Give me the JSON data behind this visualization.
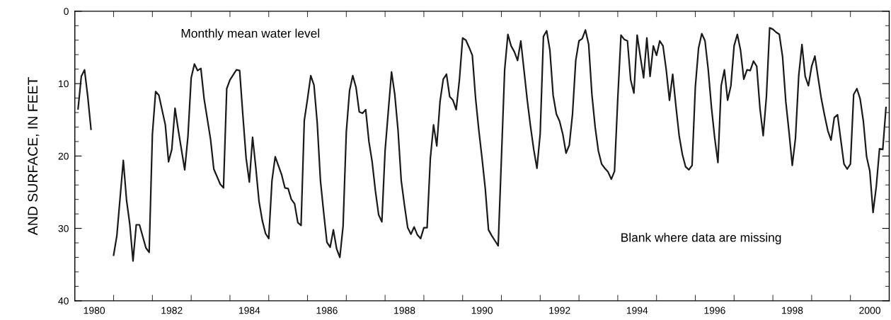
{
  "chart_data": {
    "type": "line",
    "ylabel": "AND SURFACE, IN FEET",
    "annotations": [
      "Monthly mean water level",
      "Blank where data are missing"
    ],
    "xlim": [
      "1980",
      "2001"
    ],
    "ylim": [
      40,
      0
    ],
    "xticks": [
      {
        "value": "1980-07",
        "label": "1980"
      },
      {
        "value": "1982-07",
        "label": "1982"
      },
      {
        "value": "1984-07",
        "label": "1984"
      },
      {
        "value": "1986-07",
        "label": "1986"
      },
      {
        "value": "1988-07",
        "label": "1988"
      },
      {
        "value": "1990-07",
        "label": "1990"
      },
      {
        "value": "1992-07",
        "label": "1992"
      },
      {
        "value": "1994-07",
        "label": "1994"
      },
      {
        "value": "1996-07",
        "label": "1996"
      },
      {
        "value": "1998-07",
        "label": "1998"
      },
      {
        "value": "2000-07",
        "label": "2000"
      },
      {
        "value": "1981",
        "label": null
      },
      {
        "value": "1982",
        "label": null
      },
      {
        "value": "1983",
        "label": null
      },
      {
        "value": "1984",
        "label": null
      },
      {
        "value": "1985",
        "label": null
      },
      {
        "value": "1986",
        "label": null
      },
      {
        "value": "1987",
        "label": null
      },
      {
        "value": "1988",
        "label": null
      },
      {
        "value": "1989",
        "label": null
      },
      {
        "value": "1990",
        "label": null
      },
      {
        "value": "1991",
        "label": null
      },
      {
        "value": "1992",
        "label": null
      },
      {
        "value": "1993",
        "label": null
      },
      {
        "value": "1994",
        "label": null
      },
      {
        "value": "1995",
        "label": null
      },
      {
        "value": "1996",
        "label": null
      },
      {
        "value": "1997",
        "label": null
      },
      {
        "value": "1998",
        "label": null
      },
      {
        "value": "1999",
        "label": null
      },
      {
        "value": "2000",
        "label": null
      }
    ],
    "yticks": [
      0,
      10,
      20,
      30,
      40,
      {
        "value": 2,
        "label": null
      },
      {
        "value": 4,
        "label": null
      },
      {
        "value": 6,
        "label": null
      },
      {
        "value": 8,
        "label": null
      },
      {
        "value": 12,
        "label": null
      },
      {
        "value": 14,
        "label": null
      },
      {
        "value": 16,
        "label": null
      },
      {
        "value": 18,
        "label": null
      },
      {
        "value": 22,
        "label": null
      },
      {
        "value": 24,
        "label": null
      },
      {
        "value": 26,
        "label": null
      },
      {
        "value": 28,
        "label": null
      },
      {
        "value": 32,
        "label": null
      },
      {
        "value": 34,
        "label": null
      },
      {
        "value": 36,
        "label": null
      },
      {
        "value": 38,
        "label": null
      }
    ],
    "marker": "none",
    "line_style": "solid",
    "series": [
      {
        "color": "#1a1a1a",
        "x": [
          "1980-02",
          "1980-03",
          "1980-04",
          "1980-05",
          "1980-06",
          "1980-07",
          "1981-01",
          "1981-02",
          "1981-04",
          "1981-05",
          "1981-06",
          "1981-07",
          "1981-08",
          "1981-09",
          "1981-11",
          "1981-12",
          "1982-01",
          "1982-02",
          "1982-03",
          "1982-05",
          "1982-06",
          "1982-07",
          "1982-08",
          "1982-09",
          "1982-11",
          "1982-12",
          "1983-01",
          "1983-02",
          "1983-03",
          "1983-04",
          "1983-05",
          "1983-07",
          "1983-08",
          "1983-10",
          "1983-11",
          "1983-12",
          "1984-01",
          "1984-03",
          "1984-04",
          "1984-05",
          "1984-06",
          "1984-07",
          "1984-08",
          "1984-09",
          "1984-10",
          "1984-11",
          "1984-12",
          "1985-01",
          "1985-02",
          "1985-03",
          "1985-05",
          "1985-06",
          "1985-07",
          "1985-08",
          "1985-09",
          "1985-10",
          "1985-11",
          "1985-12",
          "1986-01",
          "1986-02",
          "1986-03",
          "1986-04",
          "1986-05",
          "1986-06",
          "1986-07",
          "1986-08",
          "1986-09",
          "1986-10",
          "1986-11",
          "1986-12",
          "1987-01",
          "1987-02",
          "1987-03",
          "1987-04",
          "1987-05",
          "1987-06",
          "1987-07",
          "1987-08",
          "1987-09",
          "1987-10",
          "1987-11",
          "1987-12",
          "1988-01",
          "1988-02",
          "1988-03",
          "1988-04",
          "1988-05",
          "1988-06",
          "1988-07",
          "1988-08",
          "1988-09",
          "1988-10",
          "1988-11",
          "1988-12",
          "1989-01",
          "1989-02",
          "1989-03",
          "1989-04",
          "1989-05",
          "1989-06",
          "1989-07",
          "1989-08",
          "1989-09",
          "1989-10",
          "1989-11",
          "1989-12",
          "1990-01",
          "1990-02",
          "1990-03",
          "1990-04",
          "1990-05",
          "1990-06",
          "1990-07",
          "1990-08",
          "1990-09",
          "1990-10",
          "1990-11",
          "1990-12",
          "1991-01",
          "1991-02",
          "1991-03",
          "1991-04",
          "1991-05",
          "1991-06",
          "1991-07",
          "1991-08",
          "1991-09",
          "1991-10",
          "1991-11",
          "1991-12",
          "1992-01",
          "1992-02",
          "1992-03",
          "1992-04",
          "1992-05",
          "1992-06",
          "1992-07",
          "1992-08",
          "1992-09",
          "1992-10",
          "1992-11",
          "1992-12",
          "1993-01",
          "1993-02",
          "1993-03",
          "1993-04",
          "1993-05",
          "1993-06",
          "1993-07",
          "1993-08",
          "1993-09",
          "1993-10",
          "1993-11",
          "1993-12",
          "1994-01",
          "1994-02",
          "1994-03",
          "1994-04",
          "1994-05",
          "1994-06",
          "1994-07",
          "1994-08",
          "1994-09",
          "1994-10",
          "1994-11",
          "1994-12",
          "1995-01",
          "1995-02",
          "1995-03",
          "1995-04",
          "1995-05",
          "1995-06",
          "1995-07",
          "1995-08",
          "1995-09",
          "1995-10",
          "1995-11",
          "1995-12",
          "1996-01",
          "1996-02",
          "1996-03",
          "1996-04",
          "1996-05",
          "1996-06",
          "1996-07",
          "1996-08",
          "1996-09",
          "1996-10",
          "1996-11",
          "1996-12",
          "1997-01",
          "1997-02",
          "1997-03",
          "1997-04",
          "1997-05",
          "1997-06",
          "1997-07",
          "1997-08",
          "1997-09",
          "1997-10",
          "1997-11",
          "1997-12",
          "1998-01",
          "1998-02",
          "1998-03",
          "1998-04",
          "1998-05",
          "1998-06",
          "1998-07",
          "1998-08",
          "1998-09",
          "1998-10",
          "1998-11",
          "1998-12",
          "1999-01",
          "1999-02",
          "1999-03",
          "1999-04",
          "1999-05",
          "1999-06",
          "1999-07",
          "1999-08",
          "1999-09",
          "1999-10",
          "1999-11",
          "1999-12",
          "2000-01",
          "2000-02",
          "2000-03",
          "2000-04",
          "2000-05",
          "2000-06",
          "2000-07",
          "2000-08",
          "2000-09",
          "2000-10",
          "2000-11",
          "2000-12"
        ],
        "values": [
          13.5,
          9.0,
          8.1,
          11.8,
          16.3,
          null,
          33.7,
          31.0,
          20.6,
          26.1,
          29.4,
          34.5,
          29.5,
          29.5,
          32.7,
          33.3,
          17.0,
          11.1,
          11.6,
          15.7,
          20.8,
          19.1,
          13.4,
          16.4,
          21.9,
          17.3,
          9.2,
          7.3,
          8.2,
          7.9,
          12.1,
          17.7,
          21.8,
          23.9,
          24.4,
          10.7,
          9.5,
          8.1,
          8.2,
          14.4,
          20.3,
          23.6,
          17.4,
          21.6,
          26.3,
          28.9,
          30.7,
          31.4,
          23.4,
          20.1,
          22.6,
          24.4,
          24.5,
          26.0,
          26.6,
          29.2,
          29.6,
          15.1,
          12.1,
          8.9,
          10.2,
          15.4,
          23.4,
          27.8,
          31.9,
          32.6,
          30.2,
          32.8,
          34.0,
          29.7,
          16.7,
          11.0,
          8.9,
          10.5,
          13.9,
          14.1,
          13.6,
          18.0,
          20.8,
          24.8,
          28.1,
          29.1,
          19.3,
          13.8,
          8.4,
          11.5,
          16.4,
          23.4,
          26.8,
          29.9,
          30.8,
          29.8,
          30.9,
          31.4,
          29.9,
          29.9,
          20.4,
          15.7,
          18.6,
          12.5,
          9.4,
          8.7,
          11.8,
          12.3,
          13.6,
          9.5,
          3.7,
          4.0,
          5.0,
          6.1,
          12.0,
          16.4,
          20.3,
          24.5,
          30.2,
          31.0,
          31.7,
          32.4,
          20.3,
          8.1,
          3.2,
          4.8,
          5.6,
          6.8,
          4.1,
          8.2,
          12.3,
          15.9,
          19.1,
          21.7,
          16.9,
          3.5,
          2.7,
          5.4,
          11.6,
          14.2,
          15.2,
          17.0,
          19.6,
          18.5,
          14.2,
          6.8,
          4.1,
          3.8,
          2.6,
          4.6,
          11.5,
          16.0,
          19.3,
          21.1,
          21.7,
          22.2,
          23.2,
          22.1,
          12.1,
          3.3,
          3.9,
          4.1,
          9.5,
          11.3,
          3.3,
          6.3,
          9.2,
          3.7,
          9.0,
          4.8,
          6.1,
          4.1,
          4.8,
          8.1,
          12.3,
          8.7,
          13.1,
          17.2,
          19.8,
          21.5,
          21.9,
          21.3,
          10.5,
          5.1,
          3.1,
          4.1,
          8.1,
          13.3,
          17.5,
          20.9,
          10.3,
          8.1,
          12.3,
          10.3,
          4.8,
          3.2,
          5.4,
          9.4,
          8.1,
          8.2,
          6.9,
          7.6,
          13.4,
          17.2,
          11.8,
          2.3,
          2.5,
          2.9,
          3.2,
          6.3,
          12.5,
          16.7,
          21.3,
          17.5,
          8.9,
          4.6,
          9.0,
          10.3,
          7.6,
          6.2,
          9.2,
          12.1,
          14.4,
          16.5,
          17.8,
          14.7,
          14.3,
          17.7,
          21.1,
          21.8,
          21.1,
          11.5,
          10.7,
          12.1,
          15.2,
          20.1,
          22.1,
          27.8,
          24.2,
          19.0,
          19.1,
          13.3
        ]
      }
    ]
  }
}
